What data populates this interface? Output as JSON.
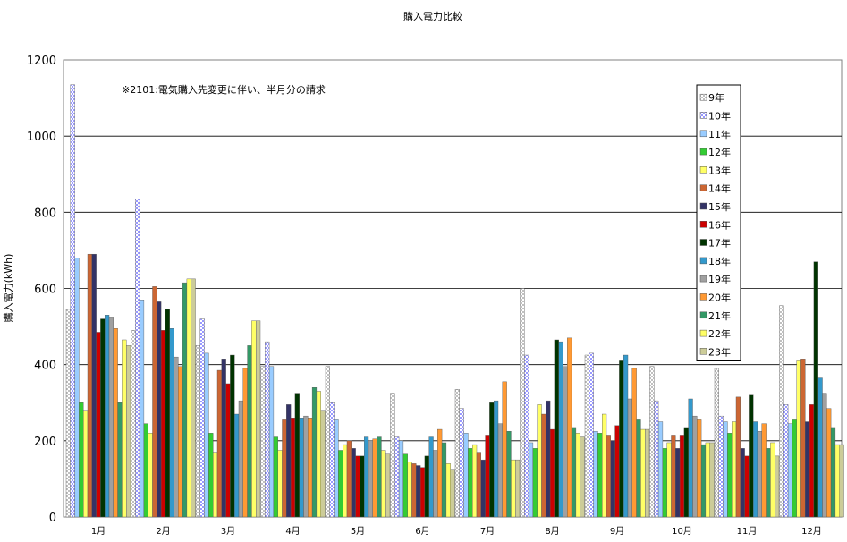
{
  "chart_data": {
    "type": "bar",
    "title": "購入電力比較",
    "ylabel": "購入電力(kWh)",
    "xlabel": "",
    "ylim": [
      0,
      1200
    ],
    "yticks": [
      0,
      200,
      400,
      600,
      800,
      1000,
      1200
    ],
    "grid": true,
    "legend_position": "right",
    "annotation": "※2101:電気購入先変更に伴い、半月分の請求",
    "categories": [
      "1月",
      "2月",
      "3月",
      "4月",
      "5月",
      "6月",
      "7月",
      "8月",
      "9月",
      "10月",
      "11月",
      "12月"
    ],
    "series": [
      {
        "name": "9年",
        "color": "#c0c0c0",
        "pattern": "dashed",
        "values": [
          545,
          490,
          450,
          395,
          395,
          325,
          335,
          600,
          425,
          395,
          390,
          555
        ]
      },
      {
        "name": "10年",
        "color": "#9999ff",
        "pattern": "dashed",
        "values": [
          1135,
          835,
          520,
          460,
          300,
          210,
          285,
          425,
          430,
          305,
          265,
          295
        ]
      },
      {
        "name": "11年",
        "color": "#99ccff",
        "values": [
          680,
          570,
          430,
          395,
          255,
          200,
          220,
          195,
          225,
          250,
          250,
          245
        ]
      },
      {
        "name": "12年",
        "color": "#33cc33",
        "values": [
          300,
          245,
          220,
          210,
          175,
          165,
          180,
          180,
          220,
          180,
          220,
          255
        ]
      },
      {
        "name": "13年",
        "color": "#ffff66",
        "values": [
          280,
          220,
          170,
          175,
          190,
          145,
          190,
          295,
          270,
          195,
          250,
          410
        ]
      },
      {
        "name": "14年",
        "color": "#cc6633",
        "values": [
          690,
          605,
          385,
          255,
          200,
          140,
          170,
          270,
          215,
          215,
          315,
          415
        ]
      },
      {
        "name": "15年",
        "color": "#333366",
        "values": [
          690,
          565,
          415,
          295,
          180,
          135,
          150,
          305,
          200,
          180,
          180,
          250
        ]
      },
      {
        "name": "16年",
        "color": "#cc0000",
        "values": [
          485,
          490,
          350,
          260,
          160,
          130,
          215,
          230,
          240,
          215,
          160,
          295
        ]
      },
      {
        "name": "17年",
        "color": "#003300",
        "values": [
          520,
          545,
          425,
          325,
          160,
          160,
          300,
          465,
          410,
          235,
          320,
          670
        ]
      },
      {
        "name": "18年",
        "color": "#3399cc",
        "values": [
          530,
          495,
          270,
          260,
          210,
          210,
          305,
          460,
          425,
          310,
          250,
          365
        ]
      },
      {
        "name": "19年",
        "color": "#a0a0a0",
        "values": [
          525,
          420,
          305,
          265,
          200,
          175,
          245,
          395,
          310,
          265,
          225,
          325
        ]
      },
      {
        "name": "20年",
        "color": "#ff9933",
        "values": [
          495,
          395,
          390,
          260,
          205,
          230,
          355,
          470,
          390,
          255,
          245,
          285
        ]
      },
      {
        "name": "21年",
        "color": "#339966",
        "values": [
          300,
          615,
          450,
          340,
          210,
          195,
          225,
          235,
          255,
          190,
          180,
          235
        ]
      },
      {
        "name": "22年",
        "color": "#ffff66",
        "values": [
          465,
          625,
          515,
          330,
          175,
          140,
          150,
          220,
          230,
          195,
          195,
          190
        ]
      },
      {
        "name": "23年",
        "color": "#cccc99",
        "values": [
          450,
          625,
          515,
          280,
          165,
          125,
          150,
          210,
          230,
          195,
          160,
          190
        ]
      }
    ]
  }
}
